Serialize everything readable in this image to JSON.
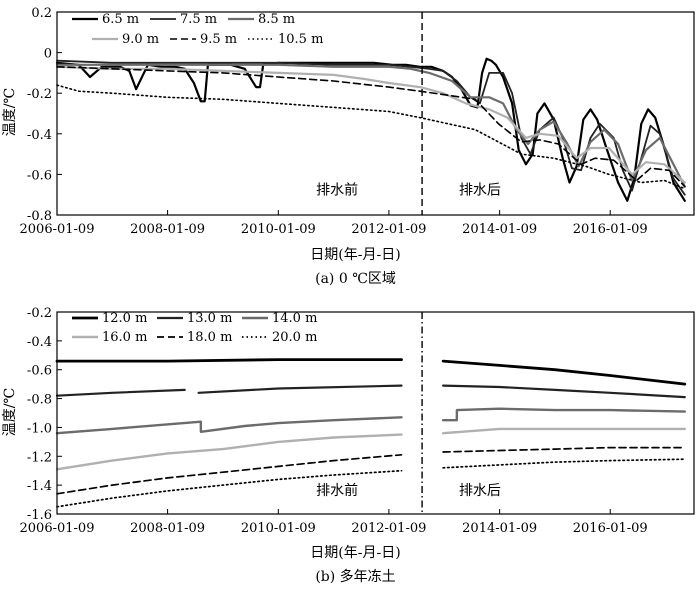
{
  "chart_data": [
    {
      "type": "line",
      "caption": "(a) 0 ℃区域",
      "xlabel": "日期(年-月-日)",
      "ylabel": "温度/℃",
      "xlim": [
        "2006-01-09",
        "2017-07-15"
      ],
      "ylim": [
        -0.8,
        0.2
      ],
      "yticks": [
        0.2,
        0,
        -0.2,
        -0.4,
        -0.6,
        -0.8
      ],
      "yticklabels": [
        "0.2",
        "0",
        "-0.2",
        "-0.4",
        "-0.6",
        "-0.8"
      ],
      "xticks": [
        "2006-01-09",
        "2008-01-09",
        "2010-01-09",
        "2012-01-09",
        "2014-01-09",
        "2016-01-09"
      ],
      "divider_date": "2012-08-15",
      "annotations": [
        {
          "text": "排水前",
          "x": "2011-02-01",
          "y": -0.7
        },
        {
          "text": "排水后",
          "x": "2013-09-01",
          "y": -0.7
        }
      ],
      "series": [
        {
          "name": "6.5 m",
          "color": "#000000",
          "width": 2.2,
          "dash": "",
          "x": [
            "2006-01-09",
            "2006-06-01",
            "2006-08-15",
            "2006-11-01",
            "2007-01-15",
            "2007-03-01",
            "2007-05-01",
            "2007-06-15",
            "2007-09-01",
            "2007-12-01",
            "2008-03-01",
            "2008-05-01",
            "2008-07-01",
            "2008-08-15",
            "2008-09-10",
            "2008-10-01",
            "2008-12-01",
            "2009-03-01",
            "2009-06-01",
            "2009-08-15",
            "2009-09-10",
            "2009-10-01",
            "2010-01-09",
            "2010-06-01",
            "2010-10-01",
            "2011-03-01",
            "2011-07-01",
            "2011-10-01",
            "2012-02-01",
            "2012-05-01",
            "2012-08-01",
            "2012-10-15",
            "2013-01-01",
            "2013-03-01",
            "2013-05-01",
            "2013-07-01",
            "2013-08-15",
            "2013-09-15",
            "2013-10-15",
            "2013-11-15",
            "2013-12-15",
            "2014-02-01",
            "2014-04-01",
            "2014-05-15",
            "2014-07-01",
            "2014-08-15",
            "2014-09-15",
            "2014-11-01",
            "2015-01-01",
            "2015-03-01",
            "2015-04-15",
            "2015-06-01",
            "2015-07-15",
            "2015-09-01",
            "2015-10-15",
            "2015-12-15",
            "2016-03-01",
            "2016-05-01",
            "2016-06-15",
            "2016-08-01",
            "2016-09-15",
            "2016-11-01",
            "2017-01-01",
            "2017-03-01",
            "2017-05-15"
          ],
          "y": [
            -0.05,
            -0.06,
            -0.12,
            -0.07,
            -0.07,
            -0.07,
            -0.09,
            -0.18,
            -0.06,
            -0.07,
            -0.07,
            -0.08,
            -0.15,
            -0.24,
            -0.24,
            -0.06,
            -0.06,
            -0.06,
            -0.08,
            -0.17,
            -0.17,
            -0.06,
            -0.05,
            -0.05,
            -0.05,
            -0.05,
            -0.05,
            -0.05,
            -0.06,
            -0.06,
            -0.07,
            -0.07,
            -0.09,
            -0.12,
            -0.18,
            -0.26,
            -0.27,
            -0.1,
            -0.03,
            -0.04,
            -0.06,
            -0.12,
            -0.25,
            -0.48,
            -0.55,
            -0.5,
            -0.3,
            -0.25,
            -0.33,
            -0.52,
            -0.64,
            -0.56,
            -0.33,
            -0.28,
            -0.33,
            -0.47,
            -0.64,
            -0.73,
            -0.62,
            -0.35,
            -0.28,
            -0.32,
            -0.47,
            -0.64,
            -0.73
          ]
        },
        {
          "name": "7.5 m",
          "color": "#222222",
          "width": 1.8,
          "dash": "",
          "x": [
            "2006-01-09",
            "2007-01-09",
            "2008-01-09",
            "2009-01-09",
            "2010-01-09",
            "2011-01-09",
            "2012-01-09",
            "2012-06-01",
            "2012-10-01",
            "2013-01-01",
            "2013-04-01",
            "2013-07-01",
            "2013-09-01",
            "2013-11-01",
            "2014-02-01",
            "2014-04-01",
            "2014-06-01",
            "2014-08-01",
            "2014-10-01",
            "2015-01-01",
            "2015-03-01",
            "2015-05-01",
            "2015-07-01",
            "2015-09-01",
            "2015-11-01",
            "2016-02-01",
            "2016-04-01",
            "2016-06-01",
            "2016-08-01",
            "2016-10-01",
            "2016-12-01",
            "2017-03-01",
            "2017-05-15"
          ],
          "y": [
            -0.04,
            -0.05,
            -0.05,
            -0.05,
            -0.05,
            -0.06,
            -0.06,
            -0.07,
            -0.08,
            -0.09,
            -0.14,
            -0.22,
            -0.25,
            -0.1,
            -0.1,
            -0.2,
            -0.42,
            -0.5,
            -0.38,
            -0.32,
            -0.42,
            -0.57,
            -0.58,
            -0.42,
            -0.35,
            -0.42,
            -0.58,
            -0.68,
            -0.52,
            -0.36,
            -0.4,
            -0.62,
            -0.7
          ]
        },
        {
          "name": "8.5 m",
          "color": "#6b6b6b",
          "width": 2.2,
          "dash": "",
          "x": [
            "2006-01-09",
            "2007-01-09",
            "2008-01-09",
            "2009-01-09",
            "2010-01-09",
            "2011-01-09",
            "2012-01-09",
            "2012-06-01",
            "2012-10-01",
            "2013-03-01",
            "2013-07-01",
            "2013-11-01",
            "2014-02-01",
            "2014-05-01",
            "2014-07-15",
            "2014-10-01",
            "2015-01-01",
            "2015-04-01",
            "2015-06-15",
            "2015-09-01",
            "2015-12-01",
            "2016-03-01",
            "2016-06-01",
            "2016-09-01",
            "2016-12-01",
            "2017-03-01",
            "2017-05-15"
          ],
          "y": [
            -0.06,
            -0.06,
            -0.06,
            -0.06,
            -0.06,
            -0.07,
            -0.07,
            -0.08,
            -0.1,
            -0.14,
            -0.22,
            -0.22,
            -0.25,
            -0.38,
            -0.45,
            -0.38,
            -0.34,
            -0.45,
            -0.56,
            -0.44,
            -0.38,
            -0.45,
            -0.63,
            -0.48,
            -0.42,
            -0.55,
            -0.66
          ]
        },
        {
          "name": "9.0 m",
          "color": "#b0b0b0",
          "width": 2.2,
          "dash": "",
          "x": [
            "2006-01-09",
            "2007-01-09",
            "2008-01-09",
            "2009-01-09",
            "2010-01-09",
            "2011-01-09",
            "2011-08-01",
            "2012-01-09",
            "2012-08-01",
            "2013-01-01",
            "2013-06-01",
            "2013-11-01",
            "2014-03-01",
            "2014-07-01",
            "2014-10-01",
            "2015-02-01",
            "2015-06-01",
            "2015-09-01",
            "2016-01-01",
            "2016-06-01",
            "2016-09-01",
            "2017-01-01",
            "2017-05-15"
          ],
          "y": [
            -0.07,
            -0.08,
            -0.08,
            -0.09,
            -0.1,
            -0.11,
            -0.13,
            -0.15,
            -0.17,
            -0.2,
            -0.25,
            -0.28,
            -0.32,
            -0.42,
            -0.4,
            -0.41,
            -0.52,
            -0.47,
            -0.47,
            -0.6,
            -0.54,
            -0.55,
            -0.64
          ]
        },
        {
          "name": "9.5 m",
          "color": "#000000",
          "width": 1.6,
          "dash": "7,4",
          "x": [
            "2006-01-09",
            "2007-01-09",
            "2008-01-09",
            "2009-01-09",
            "2010-01-09",
            "2011-01-09",
            "2012-01-09",
            "2012-08-01",
            "2013-02-01",
            "2013-08-01",
            "2014-01-01",
            "2014-06-01",
            "2014-10-01",
            "2015-02-01",
            "2015-07-01",
            "2015-10-01",
            "2016-02-01",
            "2016-07-01",
            "2016-10-01",
            "2017-02-01",
            "2017-05-15"
          ],
          "y": [
            -0.07,
            -0.08,
            -0.09,
            -0.1,
            -0.12,
            -0.14,
            -0.17,
            -0.19,
            -0.21,
            -0.23,
            -0.35,
            -0.44,
            -0.43,
            -0.45,
            -0.55,
            -0.52,
            -0.53,
            -0.63,
            -0.57,
            -0.58,
            -0.66
          ]
        },
        {
          "name": "10.5 m",
          "color": "#000000",
          "width": 1.6,
          "dash": "1.5,3",
          "x": [
            "2006-01-09",
            "2006-06-01",
            "2007-01-09",
            "2008-01-09",
            "2009-01-09",
            "2010-01-09",
            "2011-01-09",
            "2012-01-09",
            "2012-08-01",
            "2013-02-01",
            "2013-08-01",
            "2014-01-01",
            "2014-06-01",
            "2015-01-01",
            "2015-08-01",
            "2016-01-01",
            "2016-08-01",
            "2017-01-01",
            "2017-05-15"
          ],
          "y": [
            -0.16,
            -0.19,
            -0.2,
            -0.22,
            -0.23,
            -0.25,
            -0.27,
            -0.29,
            -0.32,
            -0.35,
            -0.38,
            -0.44,
            -0.5,
            -0.52,
            -0.56,
            -0.6,
            -0.64,
            -0.63,
            -0.67
          ]
        }
      ]
    },
    {
      "type": "line",
      "caption": "(b) 多年冻土",
      "xlabel": "日期(年-月-日)",
      "ylabel": "温度/℃",
      "xlim": [
        "2006-01-09",
        "2017-07-15"
      ],
      "ylim": [
        -1.6,
        -0.2
      ],
      "yticks": [
        -0.2,
        -0.4,
        -0.6,
        -0.8,
        -1.0,
        -1.2,
        -1.4,
        -1.6
      ],
      "yticklabels": [
        "-0.2",
        "-0.4",
        "-0.6",
        "-0.8",
        "-1.0",
        "-1.2",
        "-1.4",
        "-1.6"
      ],
      "xticks": [
        "2006-01-09",
        "2008-01-09",
        "2010-01-09",
        "2012-01-09",
        "2014-01-09",
        "2016-01-09"
      ],
      "divider_date": "2012-08-15",
      "annotations": [
        {
          "text": "排水前",
          "x": "2011-02-01",
          "y": -1.47
        },
        {
          "text": "排水后",
          "x": "2013-09-01",
          "y": -1.47
        }
      ],
      "series": [
        {
          "name": "12.0 m",
          "color": "#000000",
          "width": 2.8,
          "dash": "",
          "x": [
            "2006-01-09",
            "2008-01-09",
            "2010-01-09",
            "2012-04-01",
            "2012-07-01",
            "2013-01-01",
            "2014-01-09",
            "2015-01-09",
            "2016-01-09",
            "2017-05-15"
          ],
          "y": [
            -0.54,
            -0.54,
            -0.53,
            -0.53,
            null,
            -0.54,
            -0.57,
            -0.6,
            -0.64,
            -0.7
          ]
        },
        {
          "name": "13.0 m",
          "color": "#222222",
          "width": 2.2,
          "dash": "",
          "x": [
            "2006-01-09",
            "2007-01-09",
            "2008-05-01",
            "2008-07-01",
            "2008-08-01",
            "2010-01-09",
            "2012-04-01",
            "2012-07-01",
            "2013-01-01",
            "2014-01-09",
            "2015-01-09",
            "2016-01-09",
            "2017-05-15"
          ],
          "y": [
            -0.78,
            -0.76,
            -0.74,
            null,
            -0.76,
            -0.73,
            -0.71,
            null,
            -0.71,
            -0.72,
            -0.74,
            -0.76,
            -0.79
          ]
        },
        {
          "name": "14.0 m",
          "color": "#6b6b6b",
          "width": 2.4,
          "dash": "",
          "x": [
            "2006-01-09",
            "2007-01-09",
            "2008-08-15",
            "2008-08-16",
            "2009-06-01",
            "2010-01-09",
            "2011-01-09",
            "2012-04-01",
            "2012-07-01",
            "2013-01-01",
            "2013-04-01",
            "2013-04-02",
            "2014-01-09",
            "2015-01-09",
            "2016-01-09",
            "2017-05-15"
          ],
          "y": [
            -1.04,
            -1.01,
            -0.96,
            -1.03,
            -0.99,
            -0.97,
            -0.95,
            -0.93,
            null,
            -0.95,
            -0.95,
            -0.88,
            -0.87,
            -0.88,
            -0.88,
            -0.89
          ]
        },
        {
          "name": "16.0 m",
          "color": "#b0b0b0",
          "width": 2.4,
          "dash": "",
          "x": [
            "2006-01-09",
            "2007-01-09",
            "2008-01-09",
            "2009-01-09",
            "2010-01-09",
            "2011-01-09",
            "2012-04-01",
            "2012-07-01",
            "2013-01-01",
            "2014-01-09",
            "2015-01-09",
            "2016-01-09",
            "2017-05-15"
          ],
          "y": [
            -1.29,
            -1.23,
            -1.18,
            -1.15,
            -1.1,
            -1.07,
            -1.05,
            null,
            -1.04,
            -1.01,
            -1.01,
            -1.01,
            -1.01
          ]
        },
        {
          "name": "18.0 m",
          "color": "#000000",
          "width": 1.7,
          "dash": "7,4",
          "x": [
            "2006-01-09",
            "2007-01-09",
            "2008-01-09",
            "2009-01-09",
            "2010-01-09",
            "2011-01-09",
            "2012-04-01",
            "2012-07-01",
            "2013-01-01",
            "2014-01-09",
            "2015-01-09",
            "2016-01-09",
            "2017-05-15"
          ],
          "y": [
            -1.46,
            -1.4,
            -1.35,
            -1.31,
            -1.27,
            -1.23,
            -1.19,
            null,
            -1.17,
            -1.16,
            -1.15,
            -1.14,
            -1.14
          ]
        },
        {
          "name": "20.0 m",
          "color": "#000000",
          "width": 1.7,
          "dash": "1.5,3",
          "x": [
            "2006-01-09",
            "2007-01-09",
            "2008-01-09",
            "2009-01-09",
            "2010-01-09",
            "2011-01-09",
            "2012-04-01",
            "2012-07-01",
            "2013-01-01",
            "2014-01-09",
            "2015-01-09",
            "2016-01-09",
            "2017-05-15"
          ],
          "y": [
            -1.55,
            -1.49,
            -1.44,
            -1.4,
            -1.36,
            -1.33,
            -1.3,
            null,
            -1.28,
            -1.26,
            -1.24,
            -1.23,
            -1.22
          ]
        }
      ]
    }
  ]
}
